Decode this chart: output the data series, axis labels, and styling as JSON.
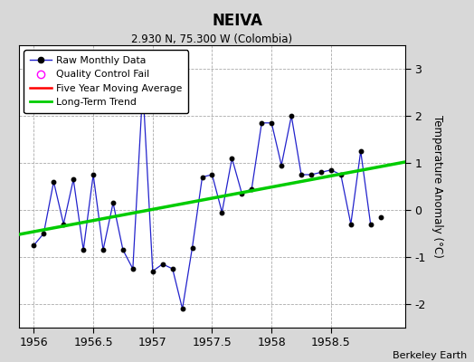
{
  "title": "NEIVA",
  "subtitle": "2.930 N, 75.300 W (Colombia)",
  "ylabel": "Temperature Anomaly (°C)",
  "credit": "Berkeley Earth",
  "xlim": [
    1955.875,
    1959.125
  ],
  "ylim": [
    -2.5,
    3.5
  ],
  "yticks": [
    -2,
    -1,
    0,
    1,
    2,
    3
  ],
  "xticks": [
    1956,
    1956.5,
    1957,
    1957.5,
    1958,
    1958.5
  ],
  "raw_x": [
    1956.0,
    1956.083,
    1956.167,
    1956.25,
    1956.333,
    1956.417,
    1956.5,
    1956.583,
    1956.667,
    1956.75,
    1956.833,
    1956.917,
    1957.0,
    1957.083,
    1957.167,
    1957.25,
    1957.333,
    1957.417,
    1957.5,
    1957.583,
    1957.667,
    1957.75,
    1957.833,
    1957.917,
    1958.0,
    1958.083,
    1958.167,
    1958.25,
    1958.333,
    1958.417,
    1958.5,
    1958.583,
    1958.667,
    1958.75,
    1958.833
  ],
  "raw_y": [
    -0.75,
    -0.5,
    0.6,
    -0.3,
    0.65,
    -0.85,
    0.75,
    -0.85,
    0.15,
    -0.85,
    -1.25,
    2.6,
    -1.3,
    -1.15,
    -1.25,
    -2.1,
    -0.8,
    0.7,
    0.75,
    -0.05,
    1.1,
    0.35,
    0.45,
    1.85,
    1.85,
    0.95,
    2.0,
    0.75,
    0.75,
    0.8,
    0.85,
    0.75,
    -0.3,
    1.25,
    -0.3
  ],
  "isolated_x": [
    1958.917
  ],
  "isolated_y": [
    -0.15
  ],
  "trend_x": [
    1955.875,
    1959.125
  ],
  "trend_y": [
    -0.52,
    1.02
  ],
  "raw_color": "#2222cc",
  "trend_color": "#00cc00",
  "mavg_color": "#ff0000",
  "bg_color": "#d8d8d8",
  "plot_bg": "#ffffff",
  "grid_color": "#aaaaaa",
  "legend_entries": [
    "Raw Monthly Data",
    "Quality Control Fail",
    "Five Year Moving Average",
    "Long-Term Trend"
  ]
}
